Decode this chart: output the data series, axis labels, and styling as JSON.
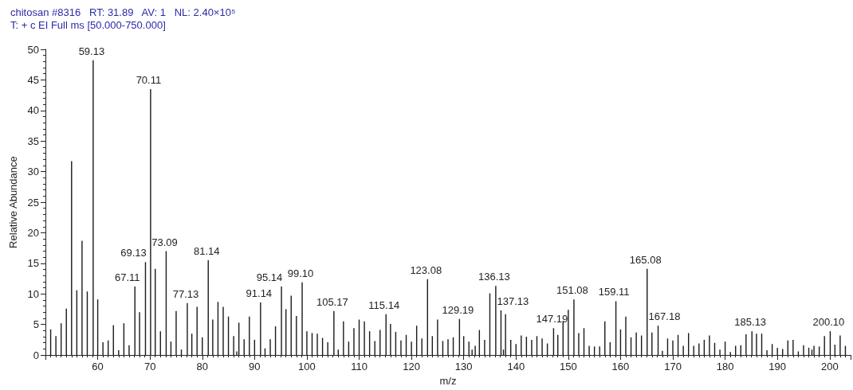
{
  "chart_data": {
    "type": "bar",
    "title": "chitosan #8316   RT: 31.89   AV: 1   NL: 2.40×10⁵",
    "subtitle": "T: + c EI Full ms [50.000-750.000]",
    "xlabel": "m/z",
    "ylabel": "Relative Abundance",
    "color": "#1a1a1a",
    "x": [
      51,
      52,
      53,
      54,
      55,
      56,
      57,
      58,
      59.13,
      60,
      61,
      62,
      63,
      64,
      65,
      66,
      67.11,
      68,
      69.13,
      70.11,
      71,
      72,
      73.09,
      74,
      75,
      76,
      77.13,
      78,
      79,
      80,
      81.14,
      82,
      83,
      84,
      85,
      86,
      86.6,
      87,
      88,
      89,
      90,
      91.14,
      92,
      93,
      94,
      95.14,
      96,
      97,
      98,
      99.1,
      100,
      101,
      102,
      103,
      104,
      105.17,
      106,
      107,
      108,
      109,
      110,
      111,
      112,
      113,
      114,
      115.14,
      116,
      117,
      118,
      119,
      120,
      121,
      122,
      123.08,
      124,
      125,
      126,
      127,
      128,
      129.19,
      130,
      131,
      131.6,
      132.2,
      133,
      134,
      135,
      136.13,
      137.13,
      137.6,
      138,
      139,
      140,
      141,
      142,
      143,
      144,
      145,
      146,
      147.19,
      148,
      149,
      150,
      151.08,
      152,
      153,
      154,
      155,
      156,
      157,
      158,
      159.11,
      160,
      161,
      162,
      163,
      164,
      165.08,
      166,
      167.18,
      168,
      169,
      170,
      171,
      172,
      173,
      174,
      175,
      176,
      177,
      178,
      179,
      180,
      181,
      182,
      183,
      184,
      185.13,
      186,
      187,
      188,
      189,
      190,
      191,
      192,
      193,
      194,
      195,
      196,
      196.6,
      197,
      198,
      199,
      200.1,
      201,
      202,
      203
    ],
    "values": [
      4.2,
      3.1,
      5.2,
      7.6,
      31.7,
      10.6,
      18.7,
      10.4,
      48.2,
      9.1,
      2.1,
      2.4,
      4.9,
      0.8,
      5.2,
      1.6,
      11.2,
      7.0,
      15.2,
      43.5,
      14.1,
      3.9,
      17.0,
      2.2,
      7.2,
      0.9,
      8.5,
      3.5,
      7.9,
      2.9,
      15.5,
      5.8,
      8.7,
      7.9,
      6.3,
      3.1,
      0.6,
      5.3,
      2.6,
      6.3,
      2.5,
      8.6,
      1.1,
      2.6,
      4.7,
      11.2,
      7.5,
      9.7,
      6.4,
      11.9,
      3.9,
      3.6,
      3.5,
      2.8,
      2.1,
      7.2,
      0.9,
      5.5,
      2.2,
      4.4,
      5.8,
      5.5,
      3.9,
      2.3,
      4.1,
      6.7,
      5.1,
      3.8,
      2.4,
      3.3,
      2.2,
      4.8,
      2.7,
      12.4,
      3.1,
      5.8,
      2.3,
      2.6,
      2.9,
      5.9,
      3.1,
      2.2,
      0.9,
      1.5,
      4.1,
      2.5,
      10.1,
      11.3,
      7.3,
      0.9,
      6.7,
      2.5,
      1.8,
      3.2,
      3.0,
      2.5,
      3.1,
      2.7,
      1.9,
      4.4,
      3.3,
      5.5,
      7.4,
      9.1,
      3.6,
      4.4,
      1.5,
      1.4,
      1.4,
      5.5,
      2.1,
      8.8,
      4.2,
      6.3,
      2.9,
      3.7,
      3.2,
      14.1,
      3.7,
      4.8,
      0.7,
      2.7,
      2.4,
      3.3,
      1.5,
      3.6,
      1.5,
      1.9,
      2.5,
      3.2,
      2.0,
      0.9,
      2.2,
      0.5,
      1.5,
      1.6,
      3.4,
      3.9,
      3.5,
      3.5,
      0.8,
      1.8,
      1.2,
      1.0,
      2.4,
      2.5,
      0.6,
      1.6,
      1.2,
      0.9,
      1.5,
      1.4,
      3.1,
      3.9,
      1.7,
      3.2,
      1.5
    ],
    "xlim": [
      50,
      204
    ],
    "xticks": [
      60,
      70,
      80,
      90,
      100,
      110,
      120,
      130,
      140,
      150,
      160,
      170,
      180,
      190,
      200
    ],
    "ylim": [
      0,
      50
    ],
    "yticks": [
      0,
      5,
      10,
      15,
      20,
      25,
      30,
      35,
      40,
      45,
      50
    ],
    "grid": false,
    "annotations": [
      {
        "text": "59.13",
        "x": 59.13,
        "y": 48.2
      },
      {
        "text": "67.11",
        "x": 67.11,
        "y": 11.2
      },
      {
        "text": "69.13",
        "x": 69.13,
        "y": 15.2
      },
      {
        "text": "70.11",
        "x": 70.11,
        "y": 43.5
      },
      {
        "text": "73.09",
        "x": 73.09,
        "y": 17.0
      },
      {
        "text": "77.13",
        "x": 77.13,
        "y": 8.5
      },
      {
        "text": "81.14",
        "x": 81.14,
        "y": 15.5
      },
      {
        "text": "91.14",
        "x": 91.14,
        "y": 8.6
      },
      {
        "text": "95.14",
        "x": 95.14,
        "y": 11.2
      },
      {
        "text": "99.10",
        "x": 99.1,
        "y": 11.9
      },
      {
        "text": "105.17",
        "x": 105.17,
        "y": 7.2
      },
      {
        "text": "115.14",
        "x": 115.14,
        "y": 6.7
      },
      {
        "text": "123.08",
        "x": 123.08,
        "y": 12.4
      },
      {
        "text": "129.19",
        "x": 129.19,
        "y": 5.9
      },
      {
        "text": "136.13",
        "x": 136.13,
        "y": 11.3
      },
      {
        "text": "137.13",
        "x": 137.13,
        "y": 7.3
      },
      {
        "text": "147.19",
        "x": 147.19,
        "y": 4.4
      },
      {
        "text": "151.08",
        "x": 151.08,
        "y": 9.1
      },
      {
        "text": "159.11",
        "x": 159.11,
        "y": 8.8
      },
      {
        "text": "165.08",
        "x": 165.08,
        "y": 14.1
      },
      {
        "text": "167.18",
        "x": 167.18,
        "y": 4.8
      },
      {
        "text": "185.13",
        "x": 185.13,
        "y": 3.9
      },
      {
        "text": "200.10",
        "x": 200.1,
        "y": 3.9
      }
    ]
  }
}
